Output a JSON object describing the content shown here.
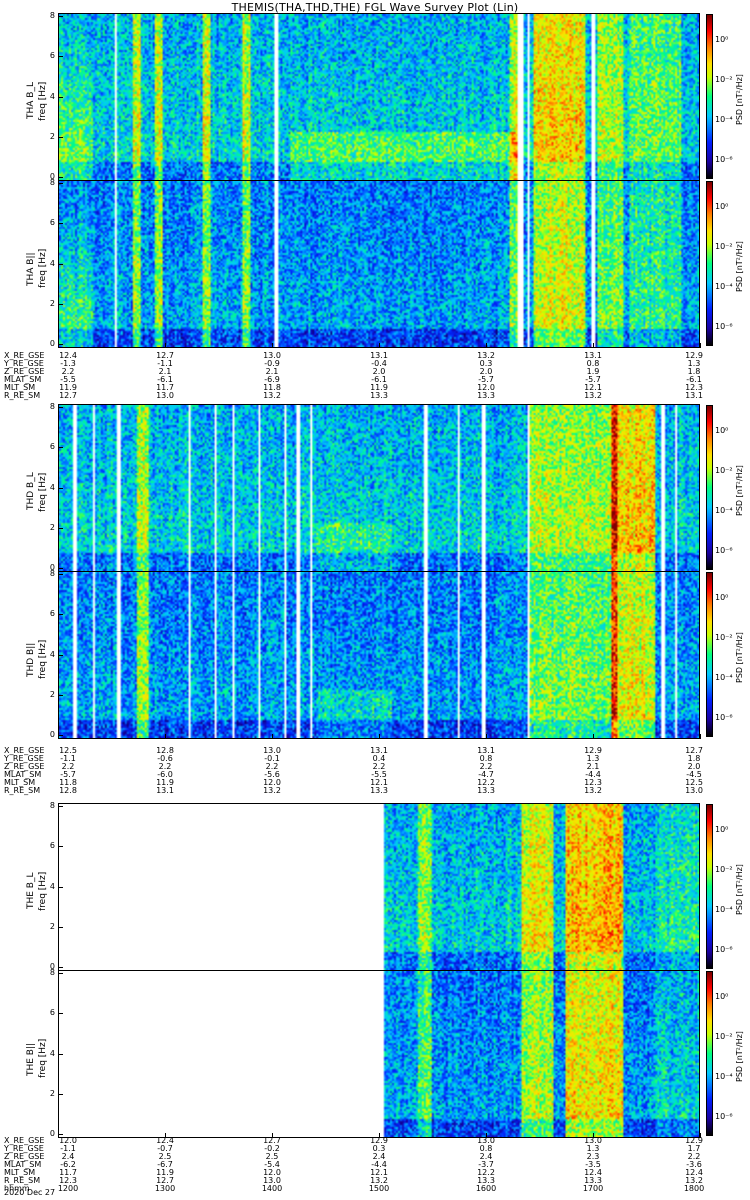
{
  "title": "THEMIS(THA,THD,THE) FGL Wave Survey Plot (Lin)",
  "date_label": "2020 Dec 27",
  "chart_data": [
    {
      "type": "heatmap",
      "groups": [
        {
          "probe": "THA",
          "panels": [
            {
              "ylabel": "THA B_L",
              "ysub": "freq [Hz]"
            },
            {
              "ylabel": "THA B||",
              "ysub": "freq [Hz]"
            }
          ],
          "ephemeris": {
            "rows": [
              "X_RE_GSE",
              "Y_RE_GSE",
              "Z_RE_GSE",
              "MLAT_SM",
              "MLT_SM",
              "R_RE_SM"
            ],
            "columns": [
              [
                "12.4",
                "-1.3",
                "2.2",
                "-5.5",
                "11.9",
                "12.7"
              ],
              [
                "12.7",
                "-1.1",
                "2.1",
                "-6.1",
                "11.7",
                "13.0"
              ],
              [
                "13.0",
                "-0.9",
                "2.1",
                "-6.9",
                "11.8",
                "13.2"
              ],
              [
                "13.1",
                "-0.4",
                "2.0",
                "-6.1",
                "11.9",
                "13.3"
              ],
              [
                "13.2",
                "0.3",
                "2.0",
                "-5.7",
                "12.0",
                "13.3"
              ],
              [
                "13.1",
                "0.8",
                "1.9",
                "-5.7",
                "12.1",
                "13.2"
              ],
              [
                "12.9",
                "1.3",
                "1.8",
                "-6.1",
                "12.3",
                "13.1"
              ]
            ]
          }
        },
        {
          "probe": "THD",
          "panels": [
            {
              "ylabel": "THD B_L",
              "ysub": "freq [Hz]"
            },
            {
              "ylabel": "THD B||",
              "ysub": "freq [Hz]"
            }
          ],
          "ephemeris": {
            "rows": [
              "X_RE_GSE",
              "Y_RE_GSE",
              "Z_RE_GSE",
              "MLAT_SM",
              "MLT_SM",
              "R_RE_SM"
            ],
            "columns": [
              [
                "12.5",
                "-1.1",
                "2.2",
                "-5.7",
                "11.8",
                "12.8"
              ],
              [
                "12.8",
                "-0.6",
                "2.2",
                "-6.0",
                "11.9",
                "13.1"
              ],
              [
                "13.0",
                "-0.1",
                "2.2",
                "-5.6",
                "12.0",
                "13.2"
              ],
              [
                "13.1",
                "0.4",
                "2.2",
                "-5.5",
                "12.1",
                "13.3"
              ],
              [
                "13.1",
                "0.8",
                "2.2",
                "-4.7",
                "12.2",
                "13.3"
              ],
              [
                "12.9",
                "1.3",
                "2.1",
                "-4.4",
                "12.3",
                "13.2"
              ],
              [
                "12.7",
                "1.8",
                "2.0",
                "-4.5",
                "12.5",
                "13.0"
              ]
            ]
          }
        },
        {
          "probe": "THE",
          "panels": [
            {
              "ylabel": "THE B_L",
              "ysub": "freq [Hz]"
            },
            {
              "ylabel": "THE B||",
              "ysub": "freq [Hz]"
            }
          ],
          "ephemeris": {
            "rows": [
              "X_RE_GSE",
              "Y_RE_GSE",
              "Z_RE_GSE",
              "MLAT_SM",
              "MLT_SM",
              "R_RE_SM",
              "hhmm"
            ],
            "columns": [
              [
                "12.0",
                "-1.1",
                "2.4",
                "-6.2",
                "11.7",
                "12.3",
                "1200"
              ],
              [
                "12.4",
                "-0.7",
                "2.5",
                "-6.7",
                "11.9",
                "12.7",
                "1300"
              ],
              [
                "12.7",
                "-0.2",
                "2.5",
                "-5.4",
                "12.0",
                "13.0",
                "1400"
              ],
              [
                "12.9",
                "0.3",
                "2.4",
                "-4.4",
                "12.1",
                "13.2",
                "1500"
              ],
              [
                "13.0",
                "0.8",
                "2.4",
                "-3.7",
                "12.2",
                "13.3",
                "1600"
              ],
              [
                "13.0",
                "1.3",
                "2.3",
                "-3.5",
                "12.4",
                "13.3",
                "1700"
              ],
              [
                "12.9",
                "1.7",
                "2.2",
                "-3.6",
                "12.4",
                "13.2",
                "1800"
              ]
            ]
          }
        }
      ],
      "y_ticks": [
        "0",
        "2",
        "4",
        "6",
        "8"
      ],
      "ylim": [
        0,
        8
      ],
      "colorbar": {
        "title": "PSD [nT²/Hz]",
        "labels": [
          "10⁰",
          "10⁻²",
          "10⁻⁴",
          "10⁻⁶"
        ]
      },
      "colors": {
        "low": "#0000a0",
        "mid": "#00ffa0",
        "high": "#ff0000"
      }
    }
  ]
}
